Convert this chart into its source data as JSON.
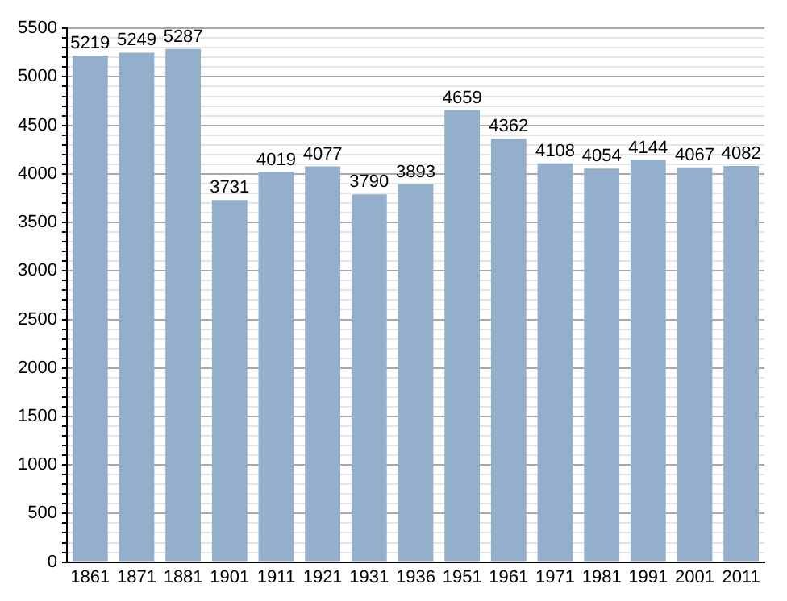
{
  "chart_data": {
    "type": "bar",
    "categories": [
      "1861",
      "1871",
      "1881",
      "1901",
      "1911",
      "1921",
      "1931",
      "1936",
      "1951",
      "1961",
      "1971",
      "1981",
      "1991",
      "2001",
      "2011"
    ],
    "values": [
      5219,
      5249,
      5287,
      3731,
      4019,
      4077,
      3790,
      3893,
      4659,
      4362,
      4108,
      4054,
      4144,
      4067,
      4082
    ],
    "color": "#94afcb",
    "data_labels": true,
    "grid": "y",
    "ylim": [
      0,
      5500
    ],
    "yticks": [
      0,
      {
        "value": 100,
        "label": null
      },
      {
        "value": 200,
        "label": null
      },
      {
        "value": 300,
        "label": null
      },
      {
        "value": 400,
        "label": null
      },
      500,
      {
        "value": 600,
        "label": null
      },
      {
        "value": 700,
        "label": null
      },
      {
        "value": 800,
        "label": null
      },
      {
        "value": 900,
        "label": null
      },
      1000,
      {
        "value": 1100,
        "label": null
      },
      {
        "value": 1200,
        "label": null
      },
      {
        "value": 1300,
        "label": null
      },
      {
        "value": 1400,
        "label": null
      },
      1500,
      {
        "value": 1600,
        "label": null
      },
      {
        "value": 1700,
        "label": null
      },
      {
        "value": 1800,
        "label": null
      },
      {
        "value": 1900,
        "label": null
      },
      2000,
      {
        "value": 2100,
        "label": null
      },
      {
        "value": 2200,
        "label": null
      },
      {
        "value": 2300,
        "label": null
      },
      {
        "value": 2400,
        "label": null
      },
      2500,
      {
        "value": 2600,
        "label": null
      },
      {
        "value": 2700,
        "label": null
      },
      {
        "value": 2800,
        "label": null
      },
      {
        "value": 2900,
        "label": null
      },
      3000,
      {
        "value": 3100,
        "label": null
      },
      {
        "value": 3200,
        "label": null
      },
      {
        "value": 3300,
        "label": null
      },
      {
        "value": 3400,
        "label": null
      },
      3500,
      {
        "value": 3600,
        "label": null
      },
      {
        "value": 3700,
        "label": null
      },
      {
        "value": 3800,
        "label": null
      },
      {
        "value": 3900,
        "label": null
      },
      4000,
      {
        "value": 4100,
        "label": null
      },
      {
        "value": 4200,
        "label": null
      },
      {
        "value": 4300,
        "label": null
      },
      {
        "value": 4400,
        "label": null
      },
      4500,
      {
        "value": 4600,
        "label": null
      },
      {
        "value": 4700,
        "label": null
      },
      {
        "value": 4800,
        "label": null
      },
      {
        "value": 4900,
        "label": null
      },
      5000,
      {
        "value": 5100,
        "label": null
      },
      {
        "value": 5200,
        "label": null
      },
      {
        "value": 5300,
        "label": null
      },
      {
        "value": 5400,
        "label": null
      },
      5500
    ]
  }
}
